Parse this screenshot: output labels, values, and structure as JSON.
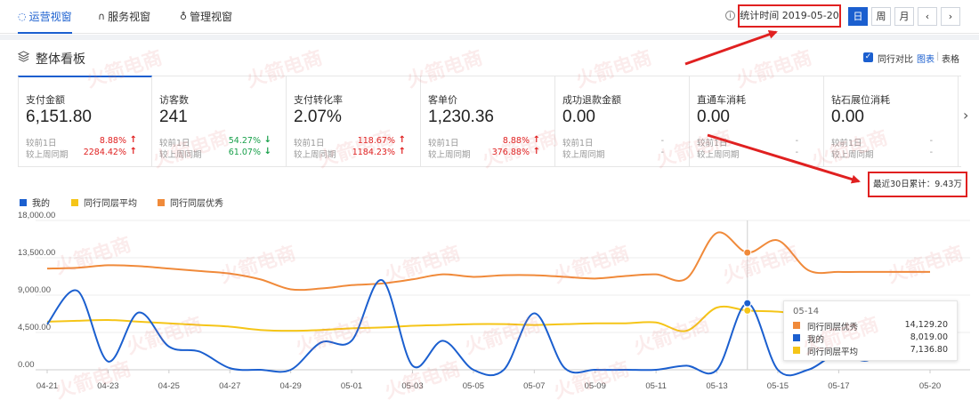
{
  "nav": {
    "tabs": [
      {
        "label": "运营视窗",
        "icon": "shield-icon",
        "active": true
      },
      {
        "label": "服务视窗",
        "icon": "headset-icon",
        "active": false
      },
      {
        "label": "管理视窗",
        "icon": "medal-icon",
        "active": false
      }
    ],
    "date_label": "统计时间 2019-05-20",
    "period_buttons": [
      "日",
      "周",
      "月"
    ],
    "prev_label": "‹",
    "next_label": "›"
  },
  "section": {
    "title": "整体看板",
    "compare_label": "同行对比",
    "view_chart": "图表",
    "view_sep": "|",
    "view_table": "表格"
  },
  "metrics": [
    {
      "label": "支付金额",
      "value": "6,151.80",
      "day_label": "较前1日",
      "day_value": "8.88%",
      "day_dir": "up",
      "week_label": "较上周同期",
      "week_value": "2284.42%",
      "week_dir": "up"
    },
    {
      "label": "访客数",
      "value": "241",
      "day_label": "较前1日",
      "day_value": "54.27%",
      "day_dir": "down",
      "week_label": "较上周同期",
      "week_value": "61.07%",
      "week_dir": "down"
    },
    {
      "label": "支付转化率",
      "value": "2.07%",
      "day_label": "较前1日",
      "day_value": "118.67%",
      "day_dir": "up",
      "week_label": "较上周同期",
      "week_value": "1184.23%",
      "week_dir": "up"
    },
    {
      "label": "客单价",
      "value": "1,230.36",
      "day_label": "较前1日",
      "day_value": "8.88%",
      "day_dir": "up",
      "week_label": "较上周同期",
      "week_value": "376.88%",
      "week_dir": "up"
    },
    {
      "label": "成功退款金额",
      "value": "0.00",
      "day_label": "较前1日",
      "day_value": "-",
      "day_dir": "none",
      "week_label": "较上周同期",
      "week_value": "-",
      "week_dir": "none"
    },
    {
      "label": "直通车消耗",
      "value": "0.00",
      "day_label": "较前1日",
      "day_value": "-",
      "day_dir": "none",
      "week_label": "较上周同期",
      "week_value": "-",
      "week_dir": "none"
    },
    {
      "label": "钻石展位消耗",
      "value": "0.00",
      "day_label": "较前1日",
      "day_value": "-",
      "day_dir": "none",
      "week_label": "较上周同期",
      "week_value": "-",
      "week_dir": "none"
    }
  ],
  "accumulated": "最近30日累计：9.43万",
  "colors": {
    "mine": "#1b5fcf",
    "avg": "#f5c518",
    "excellent": "#f08a3a",
    "accent": "#1b5fcf",
    "up": "#e02020",
    "down": "#19a04b"
  },
  "watermark": "火箭电商",
  "tooltip": {
    "date": "05-14",
    "rows": [
      {
        "name": "同行同层优秀",
        "value": "14,129.20",
        "color": "#f08a3a"
      },
      {
        "name": "我的",
        "value": "8,019.00",
        "color": "#1b5fcf"
      },
      {
        "name": "同行同层平均",
        "value": "7,136.80",
        "color": "#f5c518"
      }
    ]
  },
  "chart_data": {
    "type": "line",
    "x": [
      "04-21",
      "04-22",
      "04-23",
      "04-24",
      "04-25",
      "04-26",
      "04-27",
      "04-28",
      "04-29",
      "04-30",
      "05-01",
      "05-02",
      "05-03",
      "05-04",
      "05-05",
      "05-06",
      "05-07",
      "05-08",
      "05-09",
      "05-10",
      "05-11",
      "05-12",
      "05-13",
      "05-14",
      "05-15",
      "05-16",
      "05-17",
      "05-18",
      "05-19",
      "05-20"
    ],
    "x_tick_labels": [
      "04-21",
      "04-23",
      "04-25",
      "04-27",
      "04-29",
      "05-01",
      "05-03",
      "05-05",
      "05-07",
      "05-09",
      "05-11",
      "05-13",
      "05-15",
      "05-17",
      "05-20"
    ],
    "y_tick_labels": [
      "18,000.00",
      "13,500.00",
      "9,000.00",
      "4,500.00",
      "0.00"
    ],
    "ylim": [
      0,
      18000
    ],
    "grid": true,
    "legend_position": "top-left",
    "series": [
      {
        "name": "我的",
        "color": "#1b5fcf",
        "values": [
          5500,
          9500,
          1000,
          6900,
          2800,
          2200,
          200,
          0,
          0,
          3300,
          3500,
          10800,
          500,
          3500,
          0,
          0,
          6800,
          200,
          0,
          0,
          0,
          500,
          0,
          8019,
          0,
          0,
          2000,
          1200,
          5200,
          5800
        ]
      },
      {
        "name": "同行同层平均",
        "color": "#f5c518",
        "values": [
          5800,
          5900,
          6000,
          5800,
          5600,
          5400,
          5200,
          4800,
          4700,
          4800,
          5000,
          5100,
          5300,
          5400,
          5500,
          5500,
          5400,
          5500,
          5600,
          5600,
          5700,
          4700,
          7500,
          7136.8,
          7000,
          6600,
          6300,
          6200,
          6200,
          6000
        ]
      },
      {
        "name": "同行同层优秀",
        "color": "#f08a3a",
        "values": [
          12200,
          12300,
          12600,
          12500,
          12200,
          11900,
          11600,
          10900,
          9700,
          9800,
          10200,
          10400,
          10900,
          11500,
          11200,
          11400,
          11400,
          11200,
          11000,
          11300,
          11500,
          11000,
          16500,
          14129.2,
          15600,
          12000,
          11800,
          11800,
          11800,
          11800
        ]
      }
    ]
  }
}
